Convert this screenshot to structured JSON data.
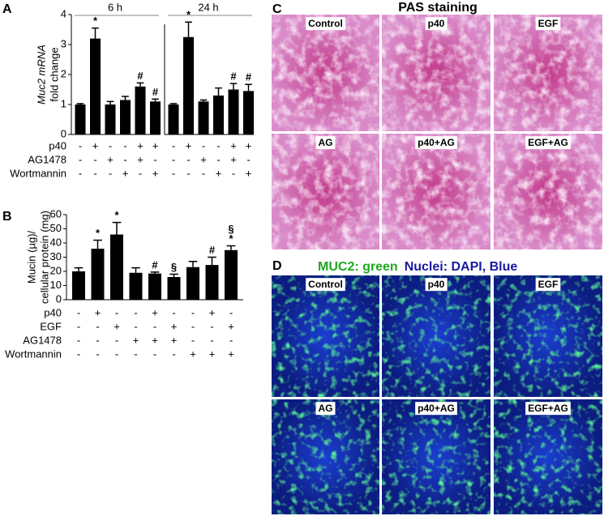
{
  "panel_labels": [
    "A",
    "B",
    "C",
    "D"
  ],
  "chart_data": [
    {
      "type": "bar",
      "ylabel": [
        "Muc2 mRNA",
        "fold change"
      ],
      "ylim": [
        0,
        4
      ],
      "yticks": [
        0,
        1,
        2,
        3,
        4
      ],
      "color": "#000000",
      "groups": [
        {
          "name": "6 h",
          "values": [
            1.0,
            3.2,
            1.0,
            1.15,
            1.6,
            1.1
          ],
          "errors": [
            0.03,
            0.35,
            0.1,
            0.12,
            0.12,
            0.08
          ],
          "annotations": [
            null,
            "*",
            null,
            null,
            "#",
            "#"
          ]
        },
        {
          "name": "24 h",
          "values": [
            1.0,
            3.25,
            1.1,
            1.3,
            1.5,
            1.45
          ],
          "errors": [
            0.03,
            0.5,
            0.05,
            0.25,
            0.2,
            0.22
          ],
          "annotations": [
            null,
            "*",
            null,
            null,
            "#",
            "#"
          ]
        }
      ],
      "treatments": [
        {
          "label": "p40",
          "signs": [
            "-",
            "+",
            "-",
            "-",
            "+",
            "+",
            "-",
            "+",
            "-",
            "-",
            "+",
            "+"
          ]
        },
        {
          "label": "AG1478",
          "signs": [
            "-",
            "-",
            "+",
            "-",
            "+",
            "-",
            "-",
            "-",
            "+",
            "-",
            "+",
            "-"
          ]
        },
        {
          "label": "Wortmannin",
          "signs": [
            "-",
            "-",
            "-",
            "+",
            "-",
            "+",
            "-",
            "-",
            "-",
            "+",
            "-",
            "+"
          ]
        }
      ]
    },
    {
      "type": "bar",
      "ylabel": [
        "Mucin (µg)/",
        "cellular protein (mg)"
      ],
      "ylim": [
        0,
        60
      ],
      "yticks": [
        0,
        10,
        20,
        30,
        40,
        50,
        60
      ],
      "color": "#000000",
      "values": [
        20,
        36,
        46,
        19,
        18.5,
        16,
        23,
        24.5,
        35
      ],
      "errors": [
        2.5,
        6,
        8.5,
        3.5,
        1,
        2,
        4,
        5.5,
        3
      ],
      "annotations": [
        null,
        "*",
        "*",
        null,
        "#",
        "§",
        null,
        "#",
        [
          "§",
          "*"
        ]
      ],
      "treatments": [
        {
          "label": "p40",
          "signs": [
            "-",
            "+",
            "-",
            "-",
            "+",
            "-",
            "-",
            "+",
            "-"
          ]
        },
        {
          "label": "EGF",
          "signs": [
            "-",
            "-",
            "+",
            "-",
            "-",
            "+",
            "-",
            "-",
            "+"
          ]
        },
        {
          "label": "AG1478",
          "signs": [
            "-",
            "-",
            "-",
            "+",
            "+",
            "+",
            "-",
            "-",
            "-"
          ]
        },
        {
          "label": "Wortmannin",
          "signs": [
            "-",
            "-",
            "-",
            "-",
            "-",
            "-",
            "+",
            "+",
            "+"
          ]
        }
      ]
    }
  ],
  "pas_staining": {
    "title": "PAS staining",
    "color": "#c0369a",
    "images": [
      "Control",
      "p40",
      "EGF",
      "AG",
      "p40+AG",
      "EGF+AG"
    ]
  },
  "muc2_staining": {
    "title": [
      {
        "text": "MUC2: green",
        "color": "#1fa81f"
      },
      {
        "text": "Nuclei: DAPI, Blue",
        "color": "#1a1aa0"
      }
    ],
    "images": [
      "Control",
      "p40",
      "EGF",
      "AG",
      "p40+AG",
      "EGF+AG"
    ]
  }
}
